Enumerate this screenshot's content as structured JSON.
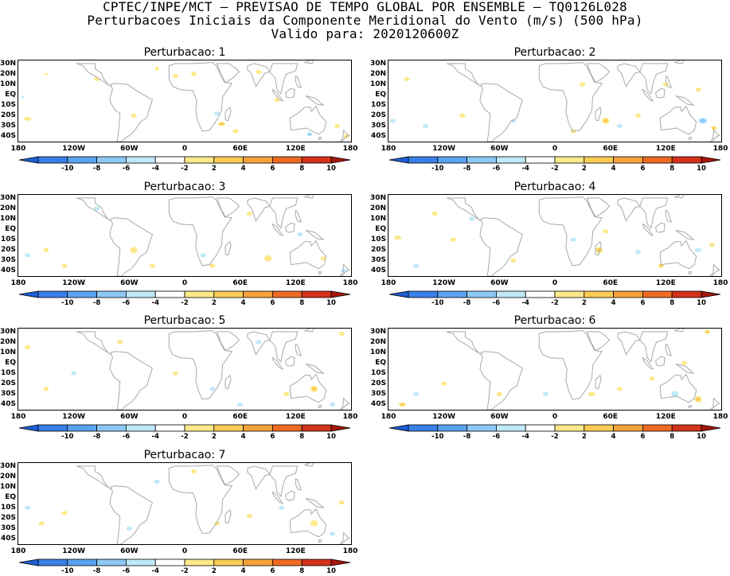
{
  "header": {
    "line1": "CPTEC/INPE/MCT – PREVISAO DE TEMPO GLOBAL POR ENSEMBLE – TQ0126L028",
    "line2": "Perturbacoes Iniciais da Componente Meridional do Vento (m/s) (500 hPa)",
    "line3": "Valido para: 2020120600Z"
  },
  "chart_data": {
    "type": "heatmap",
    "variable_units": "m/s",
    "lat_ticks": [
      "30N",
      "20N",
      "10N",
      "EQ",
      "10S",
      "20S",
      "30S",
      "40S"
    ],
    "lon_ticks": [
      "180",
      "120W",
      "60W",
      "0",
      "60E",
      "120E",
      "180"
    ],
    "colorbar": {
      "levels": [
        "-10",
        "-8",
        "-6",
        "-4",
        "-2",
        "2",
        "4",
        "6",
        "8",
        "10"
      ],
      "colors": [
        "#1f5fd6",
        "#3a7fe6",
        "#5aa2ee",
        "#8ec8f4",
        "#bfe9f9",
        "#ffffff",
        "#fde98a",
        "#fbcc55",
        "#f6a23a",
        "#ee6a22",
        "#d2331a",
        "#a8160c"
      ]
    },
    "panels": [
      {
        "title": "Perturbacao: 1"
      },
      {
        "title": "Perturbacao: 2"
      },
      {
        "title": "Perturbacao: 3"
      },
      {
        "title": "Perturbacao: 4"
      },
      {
        "title": "Perturbacao: 5"
      },
      {
        "title": "Perturbacao: 6"
      },
      {
        "title": "Perturbacao: 7"
      }
    ]
  }
}
